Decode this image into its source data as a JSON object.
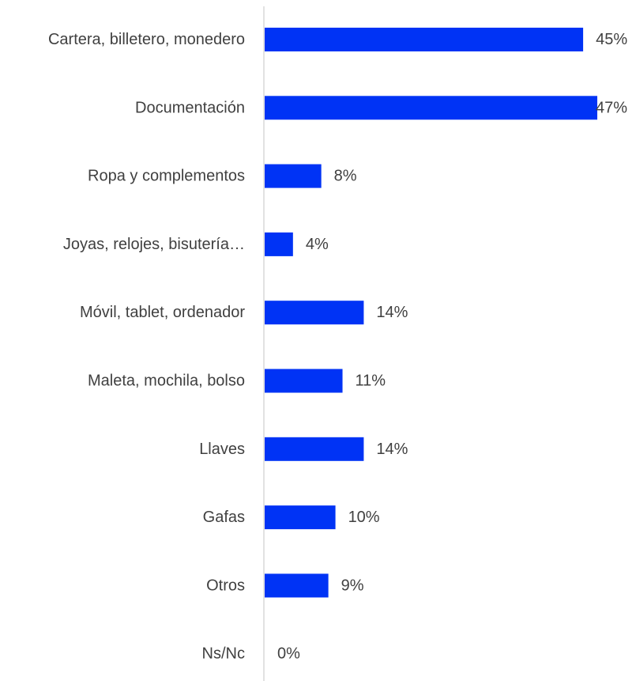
{
  "chart_data": {
    "type": "bar",
    "orientation": "horizontal",
    "categories": [
      "Cartera, billetero, monedero",
      "Documentación",
      "Ropa y complementos",
      "Joyas, relojes, bisutería…",
      "Móvil, tablet, ordenador",
      "Maleta, mochila, bolso",
      "Llaves",
      "Gafas",
      "Otros",
      "Ns/Nc"
    ],
    "values": [
      45,
      47,
      8,
      4,
      14,
      11,
      14,
      10,
      9,
      0
    ],
    "value_labels": [
      "45%",
      "47%",
      "8%",
      "4%",
      "14%",
      "11%",
      "14%",
      "10%",
      "9%",
      "0%"
    ],
    "unit": "%",
    "xlim": [
      0,
      47
    ],
    "bar_color": "#0033f5",
    "axis_color": "#d9d9d9",
    "text_color": "#404040",
    "grid": false,
    "legend": "none",
    "title": "",
    "xlabel": "",
    "ylabel": ""
  }
}
